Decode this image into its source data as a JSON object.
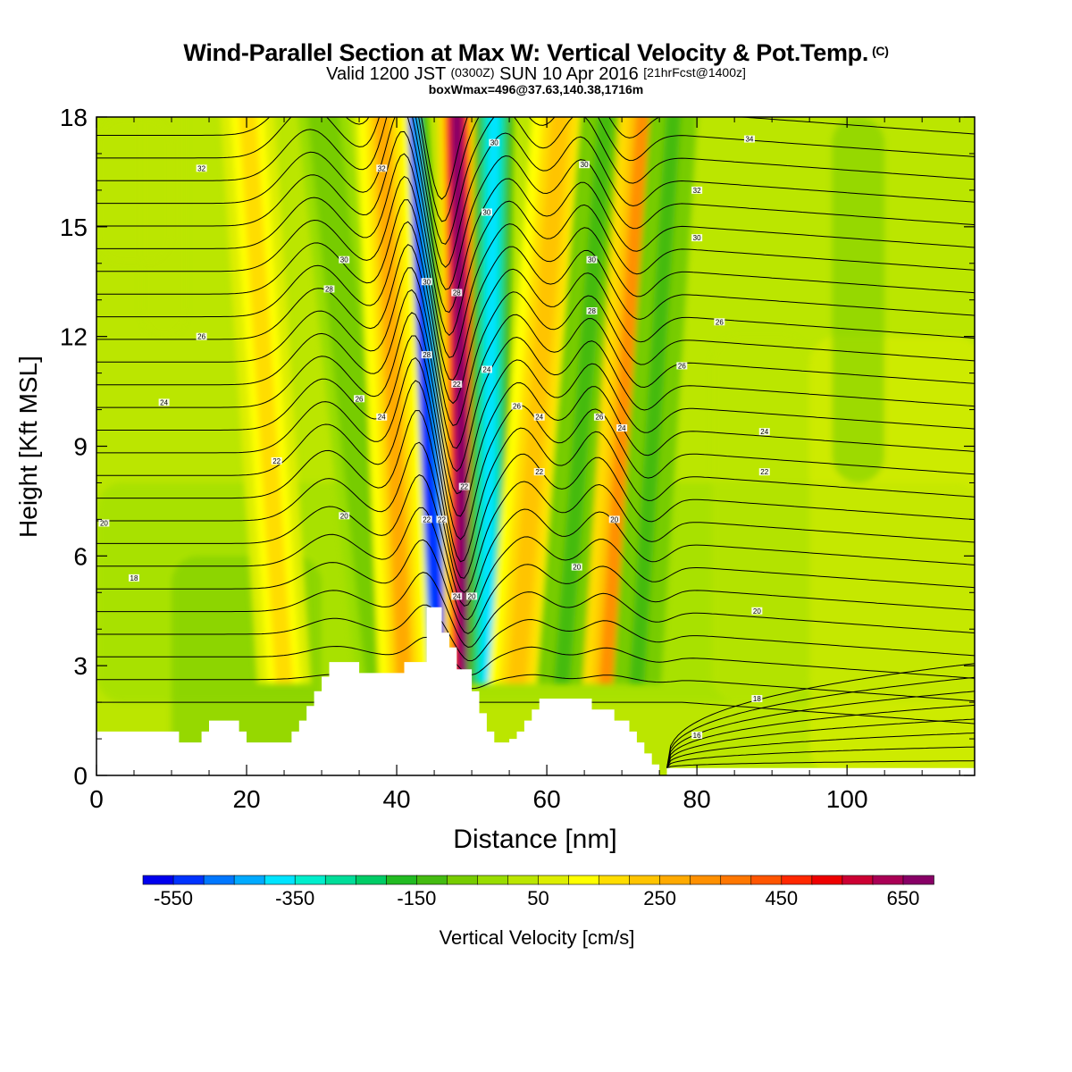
{
  "header": {
    "title_main": "Wind-Parallel Section at Max W: Vertical Velocity & Pot.Temp.",
    "title_mark": "(C)",
    "valid_a": "Valid 1200 JST",
    "valid_b": "(0300Z)",
    "valid_c": "SUN 10 Apr 2016",
    "valid_d": "[21hrFcst@1400z]",
    "subtitle2": "boxWmax=496@37.63,140.38,1716m"
  },
  "chart_data": {
    "type": "heatmap",
    "xlabel": "Distance [nm]",
    "ylabel": "Height [Kft MSL]",
    "xlim": [
      0,
      117
    ],
    "ylim": [
      0,
      18
    ],
    "xticks": [
      0,
      20,
      40,
      60,
      80,
      100
    ],
    "yticks": [
      0,
      3,
      6,
      9,
      12,
      15,
      18
    ],
    "grid": false,
    "colorbar": {
      "label": "Vertical Velocity [cm/s]",
      "placement": "bottom",
      "ticks": [
        -550,
        -350,
        -150,
        50,
        250,
        450,
        650
      ],
      "levels": [
        -600,
        -550,
        -500,
        -450,
        -400,
        -350,
        -300,
        -250,
        -200,
        -150,
        -100,
        -50,
        0,
        50,
        100,
        150,
        200,
        250,
        300,
        350,
        400,
        450,
        500,
        550,
        600,
        650,
        700
      ],
      "colors": [
        "#0000ee",
        "#0033ff",
        "#0077ff",
        "#00aaff",
        "#00e4ff",
        "#00eecc",
        "#00dd99",
        "#00cc66",
        "#22bb22",
        "#44bb11",
        "#77cc00",
        "#99dd00",
        "#bbe600",
        "#ddee00",
        "#ffff00",
        "#ffdd00",
        "#ffc400",
        "#ffaa00",
        "#ff9000",
        "#ff7700",
        "#ff5500",
        "#ff2800",
        "#ee0000",
        "#cc0033",
        "#aa0055",
        "#880066"
      ]
    },
    "vertical_velocity_features": [
      {
        "x_base": 46,
        "x_top": 41,
        "value": -550
      },
      {
        "x_base": 49,
        "x_top": 48,
        "value": 650
      },
      {
        "x_base": 52,
        "x_top": 53,
        "value": -400
      },
      {
        "x_base": 56,
        "x_top": 62,
        "value": 200
      },
      {
        "x_base": 38,
        "x_top": 30,
        "value": -100
      },
      {
        "x_base": 41,
        "x_top": 38,
        "value": 250
      },
      {
        "x_base": 62,
        "x_top": 68,
        "value": -120
      },
      {
        "x_base": 68,
        "x_top": 73,
        "value": 300
      },
      {
        "x_base": 72,
        "x_top": 77,
        "value": -130
      },
      {
        "x_base": 25,
        "x_top": 20,
        "value": 150
      }
    ],
    "terrain": {
      "x": [
        0,
        11,
        11,
        14,
        14,
        15,
        15,
        19,
        19,
        20,
        20,
        26,
        26,
        27,
        27,
        28,
        28,
        29,
        29,
        30,
        30,
        31,
        31,
        32,
        32,
        35,
        35,
        36,
        36,
        41,
        41,
        42,
        42,
        44,
        44,
        45,
        45,
        46,
        46,
        47,
        47,
        48,
        48,
        50,
        50,
        51,
        51,
        52,
        52,
        53,
        53,
        54,
        54,
        55,
        55,
        56,
        56,
        57,
        57,
        58,
        58,
        59,
        59,
        60,
        60,
        66,
        66,
        69,
        69,
        71,
        71,
        72,
        72,
        73,
        73,
        74,
        74,
        75,
        75,
        76,
        76,
        77,
        77,
        78,
        78,
        117
      ],
      "height": [
        1.2,
        1.2,
        0.9,
        0.9,
        1.2,
        1.2,
        1.5,
        1.5,
        1.2,
        1.2,
        0.9,
        0.9,
        1.2,
        1.2,
        1.5,
        1.5,
        1.9,
        1.9,
        2.3,
        2.3,
        2.7,
        2.7,
        3.1,
        3.1,
        3.1,
        3.1,
        2.8,
        2.8,
        2.8,
        2.8,
        3.1,
        3.1,
        3.1,
        3.1,
        4.6,
        4.6,
        4.6,
        4.6,
        3.9,
        3.9,
        3.5,
        3.5,
        2.9,
        2.9,
        2.3,
        2.3,
        1.7,
        1.7,
        1.2,
        1.2,
        0.9,
        0.9,
        0.9,
        0.9,
        1.0,
        1.0,
        1.2,
        1.2,
        1.5,
        1.5,
        1.8,
        1.8,
        2.1,
        2.1,
        2.1,
        2.1,
        1.8,
        1.8,
        1.5,
        1.5,
        1.2,
        1.2,
        0.9,
        0.9,
        0.6,
        0.6,
        0.3,
        0.3,
        0.0,
        0.0,
        0.2,
        0.2,
        0.2,
        0.2,
        0.2,
        0.2
      ]
    },
    "theta_contours": {
      "interval": 2,
      "unit": "°C",
      "labels": [
        {
          "x": 14,
          "y": 16.6,
          "text": "32"
        },
        {
          "x": 38,
          "y": 16.6,
          "text": "32"
        },
        {
          "x": 53,
          "y": 17.3,
          "text": "30"
        },
        {
          "x": 65,
          "y": 16.7,
          "text": "30"
        },
        {
          "x": 87,
          "y": 17.4,
          "text": "34"
        },
        {
          "x": 80,
          "y": 16.0,
          "text": "32"
        },
        {
          "x": 33,
          "y": 14.1,
          "text": "30"
        },
        {
          "x": 52,
          "y": 15.4,
          "text": "30"
        },
        {
          "x": 80,
          "y": 14.7,
          "text": "30"
        },
        {
          "x": 31,
          "y": 13.3,
          "text": "28"
        },
        {
          "x": 44,
          "y": 13.5,
          "text": "30"
        },
        {
          "x": 48,
          "y": 13.2,
          "text": "28"
        },
        {
          "x": 66,
          "y": 14.1,
          "text": "30"
        },
        {
          "x": 66,
          "y": 12.7,
          "text": "28"
        },
        {
          "x": 83,
          "y": 12.4,
          "text": "26"
        },
        {
          "x": 14,
          "y": 12.0,
          "text": "26"
        },
        {
          "x": 44,
          "y": 11.5,
          "text": "28"
        },
        {
          "x": 52,
          "y": 11.1,
          "text": "24"
        },
        {
          "x": 48,
          "y": 10.7,
          "text": "22"
        },
        {
          "x": 78,
          "y": 11.2,
          "text": "26"
        },
        {
          "x": 9,
          "y": 10.2,
          "text": "24"
        },
        {
          "x": 35,
          "y": 10.3,
          "text": "26"
        },
        {
          "x": 38,
          "y": 9.8,
          "text": "24"
        },
        {
          "x": 56,
          "y": 10.1,
          "text": "26"
        },
        {
          "x": 59,
          "y": 9.8,
          "text": "24"
        },
        {
          "x": 67,
          "y": 9.8,
          "text": "26"
        },
        {
          "x": 70,
          "y": 9.5,
          "text": "24"
        },
        {
          "x": 89,
          "y": 9.4,
          "text": "24"
        },
        {
          "x": 24,
          "y": 8.6,
          "text": "22"
        },
        {
          "x": 89,
          "y": 8.3,
          "text": "22"
        },
        {
          "x": 59,
          "y": 8.3,
          "text": "22"
        },
        {
          "x": 49,
          "y": 7.9,
          "text": "22"
        },
        {
          "x": 1,
          "y": 6.9,
          "text": "20"
        },
        {
          "x": 33,
          "y": 7.1,
          "text": "20"
        },
        {
          "x": 44,
          "y": 7.0,
          "text": "22"
        },
        {
          "x": 46,
          "y": 7.0,
          "text": "22"
        },
        {
          "x": 69,
          "y": 7.0,
          "text": "20"
        },
        {
          "x": 5,
          "y": 5.4,
          "text": "18"
        },
        {
          "x": 64,
          "y": 5.7,
          "text": "20"
        },
        {
          "x": 48,
          "y": 4.9,
          "text": "24"
        },
        {
          "x": 50,
          "y": 4.9,
          "text": "20"
        },
        {
          "x": 88,
          "y": 4.5,
          "text": "20"
        },
        {
          "x": 88,
          "y": 2.1,
          "text": "18"
        },
        {
          "x": 80,
          "y": 1.1,
          "text": "16"
        }
      ]
    }
  }
}
